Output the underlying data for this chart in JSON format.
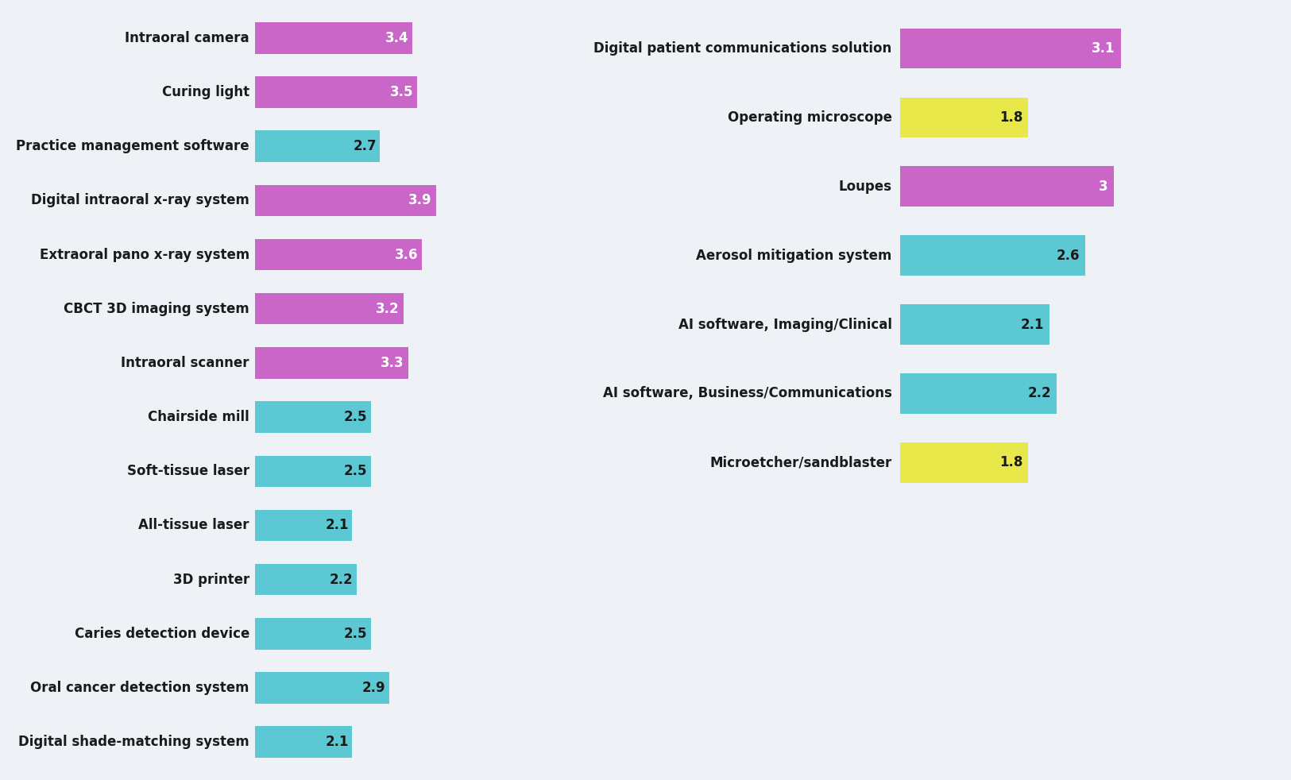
{
  "left_categories": [
    "Intraoral camera",
    "Curing light",
    "Practice management software",
    "Digital intraoral x-ray system",
    "Extraoral pano x-ray system",
    "CBCT 3D imaging system",
    "Intraoral scanner",
    "Chairside mill",
    "Soft-tissue laser",
    "All-tissue laser",
    "3D printer",
    "Caries detection device",
    "Oral cancer detection system",
    "Digital shade-matching system"
  ],
  "left_values": [
    3.4,
    3.5,
    2.7,
    3.9,
    3.6,
    3.2,
    3.3,
    2.5,
    2.5,
    2.1,
    2.2,
    2.5,
    2.9,
    2.1
  ],
  "left_colors": [
    "#c966c8",
    "#c966c8",
    "#5bc8d4",
    "#c966c8",
    "#c966c8",
    "#c966c8",
    "#c966c8",
    "#5bc8d4",
    "#5bc8d4",
    "#5bc8d4",
    "#5bc8d4",
    "#5bc8d4",
    "#5bc8d4",
    "#5bc8d4"
  ],
  "right_categories": [
    "Digital patient communications solution",
    "Operating microscope",
    "Loupes",
    "Aerosol mitigation system",
    "AI software, Imaging/Clinical",
    "AI software, Business/Communications",
    "Microetcher/sandblaster"
  ],
  "right_values": [
    3.1,
    1.8,
    3.0,
    2.6,
    2.1,
    2.2,
    1.8
  ],
  "right_colors": [
    "#c966c8",
    "#e8e84a",
    "#c966c8",
    "#5bc8d4",
    "#5bc8d4",
    "#5bc8d4",
    "#e8e84a"
  ],
  "bg_color": "#eef2f7",
  "box_color": "#3d6b74",
  "text_color": "#1a1a1a",
  "white": "#ffffff"
}
